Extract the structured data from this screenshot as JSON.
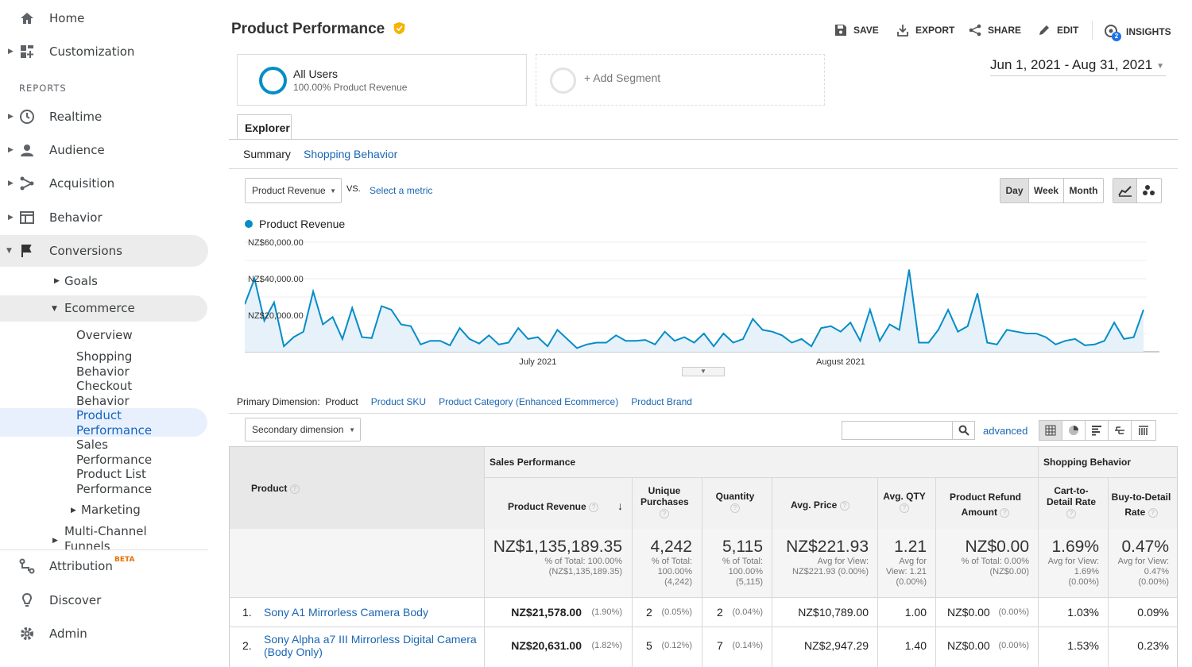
{
  "sidebar": {
    "home": "Home",
    "customization": "Customization",
    "reports_header": "REPORTS",
    "realtime": "Realtime",
    "audience": "Audience",
    "acquisition": "Acquisition",
    "behavior": "Behavior",
    "conversions": "Conversions",
    "goals": "Goals",
    "ecommerce": "Ecommerce",
    "overview": "Overview",
    "shopping_behavior": [
      "Shopping",
      "Behavior"
    ],
    "checkout_behavior": [
      "Checkout",
      "Behavior"
    ],
    "product_performance": [
      "Product",
      "Performance"
    ],
    "sales_performance": [
      "Sales",
      "Performance"
    ],
    "product_list_performance": [
      "Product List",
      "Performance"
    ],
    "marketing": "Marketing",
    "multichannel": [
      "Multi-Channel",
      "Funnels"
    ],
    "attribution": "Attribution",
    "beta": "BETA",
    "discover": "Discover",
    "admin": "Admin"
  },
  "header": {
    "title": "Product Performance",
    "save": "SAVE",
    "export": "EXPORT",
    "share": "SHARE",
    "edit": "EDIT",
    "insights": "INSIGHTS",
    "insights_badge": "2"
  },
  "segments": {
    "all_users": "All Users",
    "all_users_sub": "100.00% Product Revenue",
    "add_segment": "+ Add Segment"
  },
  "date_range": "Jun 1, 2021 - Aug 31, 2021",
  "tabs": {
    "explorer": "Explorer",
    "summary": "Summary",
    "shopping_behavior": "Shopping Behavior"
  },
  "metric": {
    "selected": "Product Revenue",
    "vs": "VS.",
    "select_metric": "Select a metric"
  },
  "period": {
    "day": "Day",
    "week": "Week",
    "month": "Month"
  },
  "chart_data": {
    "type": "area",
    "legend": "Product Revenue",
    "y_ticks": [
      "NZ$60,000.00",
      "NZ$40,000.00",
      "NZ$20,000.00"
    ],
    "ylim": [
      0,
      60000
    ],
    "x_labels": [
      "July 2021",
      "August 2021"
    ],
    "series": [
      {
        "name": "Product Revenue",
        "values": [
          26000,
          40000,
          17000,
          27000,
          3000,
          8000,
          11000,
          33000,
          15000,
          19000,
          7000,
          24000,
          8000,
          7500,
          25000,
          23000,
          15000,
          14000,
          4000,
          6000,
          6000,
          3500,
          13000,
          7000,
          4500,
          9000,
          4000,
          5000,
          13000,
          7000,
          8000,
          3000,
          12000,
          7000,
          2000,
          4000,
          5000,
          5000,
          9000,
          6000,
          6000,
          6500,
          4000,
          11000,
          6000,
          8000,
          5000,
          10000,
          3000,
          10000,
          5000,
          7000,
          18000,
          12000,
          11000,
          9000,
          5000,
          7000,
          3000,
          13000,
          14000,
          11000,
          16000,
          6000,
          23000,
          6000,
          15000,
          12000,
          45000,
          5000,
          5000,
          12000,
          23000,
          11000,
          14000,
          32000,
          5000,
          4000,
          12000,
          11000,
          10000,
          10000,
          8000,
          4000,
          6000,
          7000,
          3500,
          4000,
          6000,
          16000,
          7000,
          8000,
          23000
        ],
        "color": "#058dc7"
      }
    ]
  },
  "primary_dimension": {
    "label": "Primary Dimension:",
    "active": "Product",
    "options": [
      "Product SKU",
      "Product Category (Enhanced Ecommerce)",
      "Product Brand"
    ]
  },
  "secondary_dimension": "Secondary dimension",
  "advanced": "advanced",
  "table": {
    "product_header": "Product",
    "group1": "Sales Performance",
    "group2": "Shopping Behavior",
    "columns": [
      "Product Revenue",
      "Unique Purchases",
      "Quantity",
      "Avg. Price",
      "Avg. QTY",
      "Product Refund Amount",
      "Cart-to-Detail Rate",
      "Buy-to-Detail Rate"
    ],
    "totals": [
      {
        "big": "NZ$1,135,189.35",
        "s1": "% of Total: 100.00%",
        "s2": "(NZ$1,135,189.35)"
      },
      {
        "big": "4,242",
        "s1": "% of Total:",
        "s2": "100.00%",
        "s3": "(4,242)"
      },
      {
        "big": "5,115",
        "s1": "% of Total:",
        "s2": "100.00%",
        "s3": "(5,115)"
      },
      {
        "big": "NZ$221.93",
        "s1": "Avg for View:",
        "s2": "NZ$221.93 (0.00%)"
      },
      {
        "big": "1.21",
        "s1": "Avg for",
        "s2": "View: 1.21",
        "s3": "(0.00%)"
      },
      {
        "big": "NZ$0.00",
        "s1": "% of Total: 0.00%",
        "s2": "(NZ$0.00)"
      },
      {
        "big": "1.69%",
        "s1": "Avg for View:",
        "s2": "1.69%",
        "s3": "(0.00%)"
      },
      {
        "big": "0.47%",
        "s1": "Avg for View:",
        "s2": "0.47%",
        "s3": "(0.00%)"
      }
    ],
    "rows": [
      {
        "idx": "1.",
        "product": "Sony A1 Mirrorless Camera Body",
        "rev": "NZ$21,578.00",
        "rev_pct": "(1.90%)",
        "up": "2",
        "up_pct": "(0.05%)",
        "qty": "2",
        "qty_pct": "(0.04%)",
        "avg_price": "NZ$10,789.00",
        "avg_qty": "1.00",
        "refund": "NZ$0.00",
        "refund_pct": "(0.00%)",
        "c2d": "1.03%",
        "b2d": "0.09%"
      },
      {
        "idx": "2.",
        "product": "Sony Alpha a7 III Mirrorless Digital Camera",
        "product2": "(Body Only)",
        "rev": "NZ$20,631.00",
        "rev_pct": "(1.82%)",
        "up": "5",
        "up_pct": "(0.12%)",
        "qty": "7",
        "qty_pct": "(0.14%)",
        "avg_price": "NZ$2,947.29",
        "avg_qty": "1.40",
        "refund": "NZ$0.00",
        "refund_pct": "(0.00%)",
        "c2d": "1.53%",
        "b2d": "0.23%"
      }
    ]
  }
}
